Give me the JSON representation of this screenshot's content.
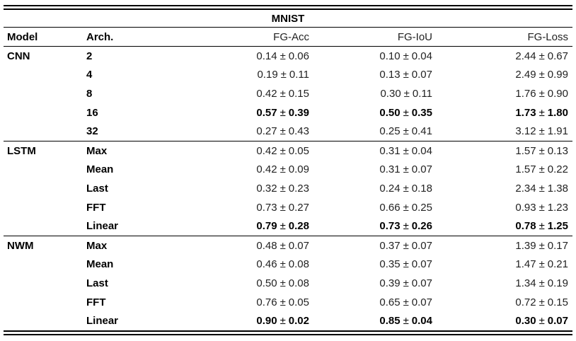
{
  "title": "MNIST",
  "symbols": {
    "plus_minus": "±"
  },
  "columns": {
    "model": "Model",
    "arch": "Arch.",
    "acc": "FG-Acc",
    "iou": "FG-IoU",
    "loss": "FG-Loss"
  },
  "colors": {
    "background": "#ffffff",
    "text": "#1f1f1f",
    "bold_text": "#000000",
    "rule": "#000000"
  },
  "sections": [
    {
      "model": "CNN",
      "rows": [
        {
          "arch": "2",
          "acc": [
            "0.14",
            "0.06"
          ],
          "iou": [
            "0.10",
            "0.04"
          ],
          "loss": [
            "2.44",
            "0.67"
          ],
          "highlight": false
        },
        {
          "arch": "4",
          "acc": [
            "0.19",
            "0.11"
          ],
          "iou": [
            "0.13",
            "0.07"
          ],
          "loss": [
            "2.49",
            "0.99"
          ],
          "highlight": false
        },
        {
          "arch": "8",
          "acc": [
            "0.42",
            "0.15"
          ],
          "iou": [
            "0.30",
            "0.11"
          ],
          "loss": [
            "1.76",
            "0.90"
          ],
          "highlight": false
        },
        {
          "arch": "16",
          "acc": [
            "0.57",
            "0.39"
          ],
          "iou": [
            "0.50",
            "0.35"
          ],
          "loss": [
            "1.73",
            "1.80"
          ],
          "highlight": true
        },
        {
          "arch": "32",
          "acc": [
            "0.27",
            "0.43"
          ],
          "iou": [
            "0.25",
            "0.41"
          ],
          "loss": [
            "3.12",
            "1.91"
          ],
          "highlight": false
        }
      ]
    },
    {
      "model": "LSTM",
      "rows": [
        {
          "arch": "Max",
          "acc": [
            "0.42",
            "0.05"
          ],
          "iou": [
            "0.31",
            "0.04"
          ],
          "loss": [
            "1.57",
            "0.13"
          ],
          "highlight": false
        },
        {
          "arch": "Mean",
          "acc": [
            "0.42",
            "0.09"
          ],
          "iou": [
            "0.31",
            "0.07"
          ],
          "loss": [
            "1.57",
            "0.22"
          ],
          "highlight": false
        },
        {
          "arch": "Last",
          "acc": [
            "0.32",
            "0.23"
          ],
          "iou": [
            "0.24",
            "0.18"
          ],
          "loss": [
            "2.34",
            "1.38"
          ],
          "highlight": false
        },
        {
          "arch": "FFT",
          "acc": [
            "0.73",
            "0.27"
          ],
          "iou": [
            "0.66",
            "0.25"
          ],
          "loss": [
            "0.93",
            "1.23"
          ],
          "highlight": false
        },
        {
          "arch": "Linear",
          "acc": [
            "0.79",
            "0.28"
          ],
          "iou": [
            "0.73",
            "0.26"
          ],
          "loss": [
            "0.78",
            "1.25"
          ],
          "highlight": true
        }
      ]
    },
    {
      "model": "NWM",
      "rows": [
        {
          "arch": "Max",
          "acc": [
            "0.48",
            "0.07"
          ],
          "iou": [
            "0.37",
            "0.07"
          ],
          "loss": [
            "1.39",
            "0.17"
          ],
          "highlight": false
        },
        {
          "arch": "Mean",
          "acc": [
            "0.46",
            "0.08"
          ],
          "iou": [
            "0.35",
            "0.07"
          ],
          "loss": [
            "1.47",
            "0.21"
          ],
          "highlight": false
        },
        {
          "arch": "Last",
          "acc": [
            "0.50",
            "0.08"
          ],
          "iou": [
            "0.39",
            "0.07"
          ],
          "loss": [
            "1.34",
            "0.19"
          ],
          "highlight": false
        },
        {
          "arch": "FFT",
          "acc": [
            "0.76",
            "0.05"
          ],
          "iou": [
            "0.65",
            "0.07"
          ],
          "loss": [
            "0.72",
            "0.15"
          ],
          "highlight": false
        },
        {
          "arch": "Linear",
          "acc": [
            "0.90",
            "0.02"
          ],
          "iou": [
            "0.85",
            "0.04"
          ],
          "loss": [
            "0.30",
            "0.07"
          ],
          "highlight": true
        }
      ]
    }
  ],
  "chart_data": {
    "type": "table",
    "title": "MNIST",
    "columns": [
      "Model",
      "Arch.",
      "FG-Acc",
      "FG-IoU",
      "FG-Loss"
    ],
    "rows": [
      [
        "CNN",
        "2",
        "0.14 ± 0.06",
        "0.10 ± 0.04",
        "2.44 ± 0.67"
      ],
      [
        "CNN",
        "4",
        "0.19 ± 0.11",
        "0.13 ± 0.07",
        "2.49 ± 0.99"
      ],
      [
        "CNN",
        "8",
        "0.42 ± 0.15",
        "0.30 ± 0.11",
        "1.76 ± 0.90"
      ],
      [
        "CNN",
        "16",
        "0.57 ± 0.39",
        "0.50 ± 0.35",
        "1.73 ± 1.80"
      ],
      [
        "CNN",
        "32",
        "0.27 ± 0.43",
        "0.25 ± 0.41",
        "3.12 ± 1.91"
      ],
      [
        "LSTM",
        "Max",
        "0.42 ± 0.05",
        "0.31 ± 0.04",
        "1.57 ± 0.13"
      ],
      [
        "LSTM",
        "Mean",
        "0.42 ± 0.09",
        "0.31 ± 0.07",
        "1.57 ± 0.22"
      ],
      [
        "LSTM",
        "Last",
        "0.32 ± 0.23",
        "0.24 ± 0.18",
        "2.34 ± 1.38"
      ],
      [
        "LSTM",
        "FFT",
        "0.73 ± 0.27",
        "0.66 ± 0.25",
        "0.93 ± 1.23"
      ],
      [
        "LSTM",
        "Linear",
        "0.79 ± 0.28",
        "0.73 ± 0.26",
        "0.78 ± 1.25"
      ],
      [
        "NWM",
        "Max",
        "0.48 ± 0.07",
        "0.37 ± 0.07",
        "1.39 ± 0.17"
      ],
      [
        "NWM",
        "Mean",
        "0.46 ± 0.08",
        "0.35 ± 0.07",
        "1.47 ± 0.21"
      ],
      [
        "NWM",
        "Last",
        "0.50 ± 0.08",
        "0.39 ± 0.07",
        "1.34 ± 0.19"
      ],
      [
        "NWM",
        "FFT",
        "0.76 ± 0.05",
        "0.65 ± 0.07",
        "0.72 ± 0.15"
      ],
      [
        "NWM",
        "Linear",
        "0.90 ± 0.02",
        "0.85 ± 0.04",
        "0.30 ± 0.07"
      ]
    ]
  }
}
